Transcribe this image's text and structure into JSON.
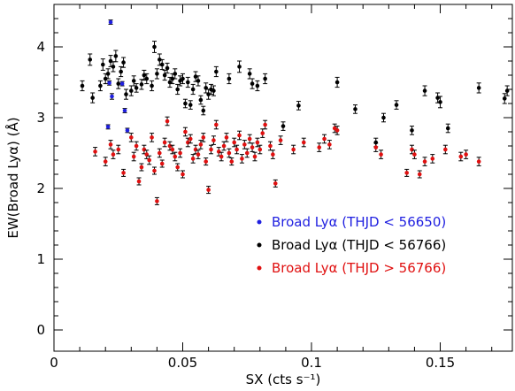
{
  "chart_data": {
    "type": "scatter",
    "title": "",
    "xlabel": "SX (cts s⁻¹)",
    "ylabel": "EW(Broad Lyα) (Å)",
    "xlim": [
      0,
      0.178
    ],
    "ylim": [
      -0.3,
      4.6
    ],
    "x_ticks": [
      0,
      0.05,
      0.1,
      0.15
    ],
    "x_tick_labels": [
      "0",
      "0.05",
      "0.1",
      "0.15"
    ],
    "y_ticks": [
      0,
      1,
      2,
      3,
      4
    ],
    "y_tick_labels": [
      "0",
      "1",
      "2",
      "3",
      "4"
    ],
    "grid": false,
    "legend_position": "lower-right",
    "error_bars": true,
    "series": [
      {
        "name": "Broad Lyα (THJD < 56650)",
        "color": "#1f1fe0",
        "points": [
          [
            0.021,
            2.87,
            0.03
          ],
          [
            0.0215,
            3.49,
            0.03
          ],
          [
            0.022,
            4.35,
            0.03
          ],
          [
            0.0225,
            3.3,
            0.04
          ],
          [
            0.0265,
            3.48,
            0.03
          ],
          [
            0.0275,
            3.1,
            0.03
          ],
          [
            0.0285,
            2.82,
            0.03
          ]
        ]
      },
      {
        "name": "Broad Lyα (THJD < 56766)",
        "color": "#000000",
        "points": [
          [
            0.011,
            3.45,
            0.07
          ],
          [
            0.014,
            3.82,
            0.08
          ],
          [
            0.015,
            3.28,
            0.07
          ],
          [
            0.018,
            3.45,
            0.07
          ],
          [
            0.019,
            3.75,
            0.08
          ],
          [
            0.02,
            3.55,
            0.07
          ],
          [
            0.021,
            3.62,
            0.07
          ],
          [
            0.022,
            3.8,
            0.08
          ],
          [
            0.023,
            3.72,
            0.07
          ],
          [
            0.024,
            3.87,
            0.08
          ],
          [
            0.025,
            3.48,
            0.07
          ],
          [
            0.026,
            3.65,
            0.07
          ],
          [
            0.027,
            3.78,
            0.07
          ],
          [
            0.028,
            3.33,
            0.07
          ],
          [
            0.03,
            3.38,
            0.07
          ],
          [
            0.031,
            3.52,
            0.07
          ],
          [
            0.032,
            3.42,
            0.06
          ],
          [
            0.034,
            3.47,
            0.07
          ],
          [
            0.035,
            3.6,
            0.07
          ],
          [
            0.036,
            3.55,
            0.07
          ],
          [
            0.038,
            3.45,
            0.07
          ],
          [
            0.039,
            4.0,
            0.08
          ],
          [
            0.04,
            3.62,
            0.07
          ],
          [
            0.041,
            3.82,
            0.08
          ],
          [
            0.042,
            3.75,
            0.07
          ],
          [
            0.043,
            3.6,
            0.07
          ],
          [
            0.044,
            3.7,
            0.07
          ],
          [
            0.045,
            3.5,
            0.07
          ],
          [
            0.046,
            3.55,
            0.07
          ],
          [
            0.047,
            3.62,
            0.07
          ],
          [
            0.048,
            3.4,
            0.07
          ],
          [
            0.049,
            3.52,
            0.07
          ],
          [
            0.05,
            3.55,
            0.07
          ],
          [
            0.051,
            3.2,
            0.06
          ],
          [
            0.052,
            3.5,
            0.07
          ],
          [
            0.053,
            3.18,
            0.06
          ],
          [
            0.054,
            3.4,
            0.07
          ],
          [
            0.055,
            3.58,
            0.07
          ],
          [
            0.056,
            3.52,
            0.07
          ],
          [
            0.057,
            3.25,
            0.06
          ],
          [
            0.058,
            3.1,
            0.06
          ],
          [
            0.059,
            3.42,
            0.07
          ],
          [
            0.06,
            3.33,
            0.07
          ],
          [
            0.061,
            3.4,
            0.07
          ],
          [
            0.062,
            3.38,
            0.07
          ],
          [
            0.063,
            3.65,
            0.07
          ],
          [
            0.068,
            3.55,
            0.07
          ],
          [
            0.072,
            3.72,
            0.08
          ],
          [
            0.076,
            3.62,
            0.07
          ],
          [
            0.077,
            3.48,
            0.07
          ],
          [
            0.079,
            3.45,
            0.07
          ],
          [
            0.082,
            3.55,
            0.07
          ],
          [
            0.089,
            2.88,
            0.06
          ],
          [
            0.095,
            3.17,
            0.06
          ],
          [
            0.11,
            3.5,
            0.07
          ],
          [
            0.117,
            3.12,
            0.06
          ],
          [
            0.125,
            2.65,
            0.06
          ],
          [
            0.128,
            3.0,
            0.06
          ],
          [
            0.133,
            3.18,
            0.06
          ],
          [
            0.139,
            2.82,
            0.06
          ],
          [
            0.144,
            3.38,
            0.07
          ],
          [
            0.149,
            3.28,
            0.07
          ],
          [
            0.15,
            3.22,
            0.08
          ],
          [
            0.153,
            2.85,
            0.06
          ],
          [
            0.165,
            3.42,
            0.07
          ],
          [
            0.176,
            3.38,
            0.07
          ],
          [
            0.175,
            3.27,
            0.07
          ]
        ]
      },
      {
        "name": "Broad Lyα (THJD > 56766)",
        "color": "#e01010",
        "points": [
          [
            0.016,
            2.52,
            0.06
          ],
          [
            0.02,
            2.38,
            0.06
          ],
          [
            0.022,
            2.62,
            0.06
          ],
          [
            0.023,
            2.48,
            0.06
          ],
          [
            0.025,
            2.55,
            0.06
          ],
          [
            0.027,
            2.22,
            0.05
          ],
          [
            0.03,
            2.72,
            0.06
          ],
          [
            0.031,
            2.45,
            0.06
          ],
          [
            0.032,
            2.6,
            0.06
          ],
          [
            0.033,
            2.1,
            0.05
          ],
          [
            0.034,
            2.3,
            0.05
          ],
          [
            0.035,
            2.55,
            0.06
          ],
          [
            0.036,
            2.48,
            0.06
          ],
          [
            0.037,
            2.4,
            0.06
          ],
          [
            0.038,
            2.72,
            0.06
          ],
          [
            0.039,
            2.25,
            0.05
          ],
          [
            0.04,
            1.82,
            0.05
          ],
          [
            0.041,
            2.5,
            0.06
          ],
          [
            0.042,
            2.35,
            0.05
          ],
          [
            0.043,
            2.65,
            0.06
          ],
          [
            0.044,
            2.95,
            0.06
          ],
          [
            0.045,
            2.6,
            0.06
          ],
          [
            0.046,
            2.55,
            0.06
          ],
          [
            0.047,
            2.45,
            0.06
          ],
          [
            0.048,
            2.3,
            0.05
          ],
          [
            0.049,
            2.5,
            0.06
          ],
          [
            0.05,
            2.2,
            0.05
          ],
          [
            0.051,
            2.8,
            0.06
          ],
          [
            0.052,
            2.65,
            0.06
          ],
          [
            0.053,
            2.7,
            0.06
          ],
          [
            0.054,
            2.42,
            0.06
          ],
          [
            0.055,
            2.55,
            0.06
          ],
          [
            0.056,
            2.48,
            0.06
          ],
          [
            0.057,
            2.62,
            0.06
          ],
          [
            0.058,
            2.72,
            0.06
          ],
          [
            0.059,
            2.38,
            0.05
          ],
          [
            0.06,
            1.98,
            0.05
          ],
          [
            0.061,
            2.55,
            0.06
          ],
          [
            0.062,
            2.68,
            0.06
          ],
          [
            0.063,
            2.9,
            0.06
          ],
          [
            0.064,
            2.52,
            0.06
          ],
          [
            0.065,
            2.45,
            0.06
          ],
          [
            0.066,
            2.6,
            0.06
          ],
          [
            0.067,
            2.72,
            0.06
          ],
          [
            0.068,
            2.5,
            0.06
          ],
          [
            0.069,
            2.38,
            0.05
          ],
          [
            0.07,
            2.65,
            0.06
          ],
          [
            0.071,
            2.55,
            0.06
          ],
          [
            0.072,
            2.75,
            0.06
          ],
          [
            0.073,
            2.42,
            0.06
          ],
          [
            0.074,
            2.62,
            0.06
          ],
          [
            0.075,
            2.5,
            0.06
          ],
          [
            0.076,
            2.7,
            0.06
          ],
          [
            0.077,
            2.58,
            0.06
          ],
          [
            0.078,
            2.45,
            0.06
          ],
          [
            0.079,
            2.65,
            0.06
          ],
          [
            0.08,
            2.55,
            0.06
          ],
          [
            0.081,
            2.78,
            0.06
          ],
          [
            0.082,
            2.9,
            0.06
          ],
          [
            0.084,
            2.6,
            0.06
          ],
          [
            0.085,
            2.48,
            0.06
          ],
          [
            0.086,
            2.07,
            0.05
          ],
          [
            0.088,
            2.68,
            0.06
          ],
          [
            0.093,
            2.55,
            0.06
          ],
          [
            0.097,
            2.65,
            0.06
          ],
          [
            0.103,
            2.58,
            0.06
          ],
          [
            0.105,
            2.7,
            0.06
          ],
          [
            0.107,
            2.62,
            0.06
          ],
          [
            0.109,
            2.85,
            0.06
          ],
          [
            0.11,
            2.82,
            0.06
          ],
          [
            0.125,
            2.58,
            0.06
          ],
          [
            0.127,
            2.48,
            0.06
          ],
          [
            0.137,
            2.22,
            0.05
          ],
          [
            0.139,
            2.55,
            0.06
          ],
          [
            0.14,
            2.48,
            0.06
          ],
          [
            0.142,
            2.2,
            0.05
          ],
          [
            0.144,
            2.38,
            0.06
          ],
          [
            0.147,
            2.42,
            0.06
          ],
          [
            0.152,
            2.55,
            0.06
          ],
          [
            0.158,
            2.45,
            0.06
          ],
          [
            0.16,
            2.48,
            0.06
          ],
          [
            0.165,
            2.38,
            0.06
          ]
        ]
      }
    ]
  }
}
